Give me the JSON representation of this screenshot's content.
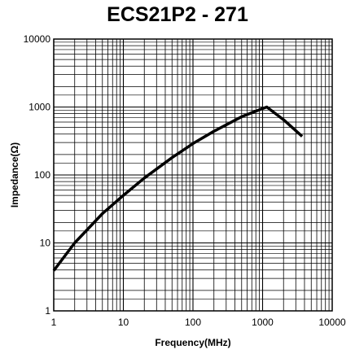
{
  "chart_data": {
    "type": "line",
    "title": "ECS21P2 - 271",
    "xlabel": "Frequency(MHz)",
    "ylabel": "Impedance(Ω)",
    "x_scale": "log",
    "y_scale": "log",
    "xlim": [
      1,
      10000
    ],
    "ylim": [
      1,
      10000
    ],
    "x_ticks": [
      "1",
      "10",
      "100",
      "1000",
      "10000"
    ],
    "y_ticks": [
      "1",
      "10",
      "100",
      "1000",
      "10000"
    ],
    "grid": true,
    "series": [
      {
        "x": [
          1,
          2,
          5,
          10,
          20,
          50,
          100,
          200,
          500,
          1000,
          1150,
          2000,
          3700
        ],
        "y": [
          3.9,
          10,
          27,
          50,
          90,
          180,
          290,
          440,
          720,
          950,
          1000,
          650,
          370
        ]
      }
    ]
  }
}
